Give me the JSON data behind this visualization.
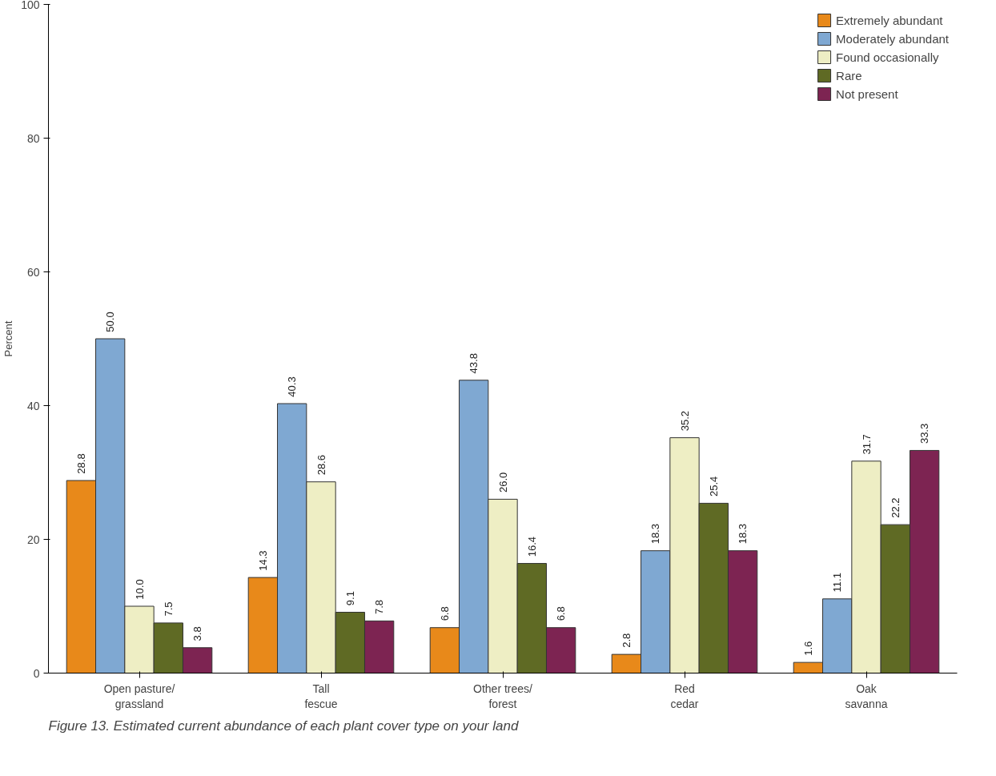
{
  "chart_data": {
    "type": "bar",
    "ylabel": "Percent",
    "categories": [
      "Open pasture/\ngrassland",
      "Tall\nfescue",
      "Other trees/\nforest",
      "Red\ncedar",
      "Oak\nsavanna"
    ],
    "series": [
      {
        "name": "Extremely abundant",
        "color": "#e8891a",
        "values": [
          28.8,
          14.3,
          6.8,
          2.8,
          1.6
        ]
      },
      {
        "name": "Moderately abundant",
        "color": "#7fa8d2",
        "values": [
          50.0,
          40.3,
          43.8,
          18.3,
          11.1
        ]
      },
      {
        "name": "Found occasionally",
        "color": "#eeeec4",
        "values": [
          10.0,
          28.6,
          26.0,
          35.2,
          31.7
        ]
      },
      {
        "name": "Rare",
        "color": "#5f6a24",
        "values": [
          7.5,
          9.1,
          16.4,
          25.4,
          22.2
        ]
      },
      {
        "name": "Not present",
        "color": "#7d2452",
        "values": [
          3.8,
          7.8,
          6.8,
          18.3,
          33.3
        ]
      }
    ],
    "value_labels": [
      [
        "28.8",
        "14.3",
        "6.8",
        "2.8",
        "1.6"
      ],
      [
        "50.0",
        "40.3",
        "43.8",
        "18.3",
        "11.1"
      ],
      [
        "10.0",
        "28.6",
        "26.0",
        "35.2",
        "31.7"
      ],
      [
        "7.5",
        "9.1",
        "16.4",
        "25.4",
        "22.2"
      ],
      [
        "3.8",
        "7.8",
        "6.8",
        "18.3",
        "33.3"
      ]
    ],
    "ylim": [
      0,
      100
    ],
    "yticks": [
      0,
      20,
      40,
      60,
      80,
      100
    ],
    "grid": false,
    "legend": "top right",
    "annotations": [
      "Figure 13. Estimated current abundance of each plant cover type on your land"
    ]
  }
}
